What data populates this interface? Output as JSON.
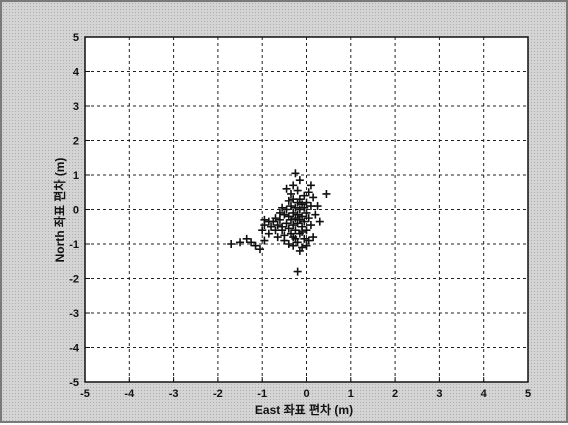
{
  "chart_data": {
    "type": "scatter",
    "title": "",
    "xlabel": "East 좌표 편차 (m)",
    "ylabel": "North 좌표 편차 (m)",
    "xlim": [
      -5,
      5
    ],
    "ylim": [
      -5,
      5
    ],
    "xticks": [
      -5,
      -4,
      -3,
      -2,
      -1,
      0,
      1,
      2,
      3,
      4,
      5
    ],
    "yticks": [
      -5,
      -4,
      -3,
      -2,
      -1,
      0,
      1,
      2,
      3,
      4,
      5
    ],
    "grid": true,
    "marker": "+",
    "colors": {
      "marker": "#111111",
      "grid": "#222222",
      "plot_bg": "#ffffff",
      "frame_bg": "#d4d4d4"
    },
    "points": [
      [
        -1.7,
        -1.0
      ],
      [
        -1.5,
        -0.95
      ],
      [
        -1.35,
        -0.85
      ],
      [
        -1.25,
        -0.95
      ],
      [
        -1.15,
        -1.05
      ],
      [
        -1.05,
        -1.15
      ],
      [
        -0.95,
        -0.9
      ],
      [
        -1.0,
        -0.6
      ],
      [
        -0.95,
        -0.45
      ],
      [
        -0.85,
        -0.7
      ],
      [
        -0.8,
        -0.5
      ],
      [
        -0.75,
        -0.35
      ],
      [
        -0.7,
        -0.6
      ],
      [
        -0.65,
        -0.8
      ],
      [
        -0.6,
        -0.3
      ],
      [
        -0.55,
        -0.5
      ],
      [
        -0.5,
        -0.15
      ],
      [
        -0.5,
        -0.75
      ],
      [
        -0.45,
        0.0
      ],
      [
        -0.45,
        -0.4
      ],
      [
        -0.4,
        0.25
      ],
      [
        -0.4,
        -0.2
      ],
      [
        -0.4,
        -0.55
      ],
      [
        -0.35,
        0.45
      ],
      [
        -0.35,
        0.1
      ],
      [
        -0.35,
        -0.3
      ],
      [
        -0.3,
        0.3
      ],
      [
        -0.3,
        -0.1
      ],
      [
        -0.3,
        -0.45
      ],
      [
        -0.3,
        -0.8
      ],
      [
        -0.25,
        0.05
      ],
      [
        -0.25,
        -0.25
      ],
      [
        -0.25,
        -0.6
      ],
      [
        -0.2,
        0.55
      ],
      [
        -0.2,
        0.2
      ],
      [
        -0.2,
        -0.15
      ],
      [
        -0.2,
        -0.4
      ],
      [
        -0.2,
        -0.95
      ],
      [
        -0.15,
        0.3
      ],
      [
        -0.15,
        0.0
      ],
      [
        -0.15,
        -0.3
      ],
      [
        -0.15,
        -0.7
      ],
      [
        -0.1,
        0.15
      ],
      [
        -0.1,
        -0.2
      ],
      [
        -0.1,
        -0.5
      ],
      [
        -0.1,
        -1.1
      ],
      [
        -0.05,
        0.4
      ],
      [
        -0.05,
        0.05
      ],
      [
        -0.05,
        -0.35
      ],
      [
        -0.05,
        -0.85
      ],
      [
        0.0,
        0.2
      ],
      [
        0.0,
        -0.1
      ],
      [
        0.0,
        -0.6
      ],
      [
        0.05,
        0.5
      ],
      [
        0.05,
        -0.25
      ],
      [
        0.1,
        0.1
      ],
      [
        0.1,
        -0.45
      ],
      [
        0.15,
        0.35
      ],
      [
        0.2,
        -0.15
      ],
      [
        0.25,
        0.1
      ],
      [
        0.3,
        -0.35
      ],
      [
        0.45,
        0.45
      ],
      [
        -0.25,
        1.05
      ],
      [
        -0.15,
        0.85
      ],
      [
        -0.2,
        -1.8
      ],
      [
        -0.55,
        0.05
      ],
      [
        -0.6,
        -0.1
      ],
      [
        -0.7,
        -0.25
      ],
      [
        -0.85,
        -0.35
      ],
      [
        -0.95,
        -0.3
      ],
      [
        -0.65,
        -0.45
      ],
      [
        -0.5,
        -0.9
      ],
      [
        -0.4,
        -1.0
      ],
      [
        -0.3,
        -1.05
      ],
      [
        -0.15,
        -1.2
      ],
      [
        0.0,
        -1.05
      ],
      [
        -0.45,
        0.6
      ],
      [
        -0.3,
        0.7
      ],
      [
        0.1,
        0.7
      ],
      [
        0.15,
        -0.8
      ],
      [
        -0.35,
        -0.7
      ],
      [
        -0.55,
        -0.6
      ],
      [
        -0.1,
        -0.65
      ],
      [
        -0.25,
        -0.85
      ],
      [
        0.05,
        -0.9
      ]
    ]
  }
}
